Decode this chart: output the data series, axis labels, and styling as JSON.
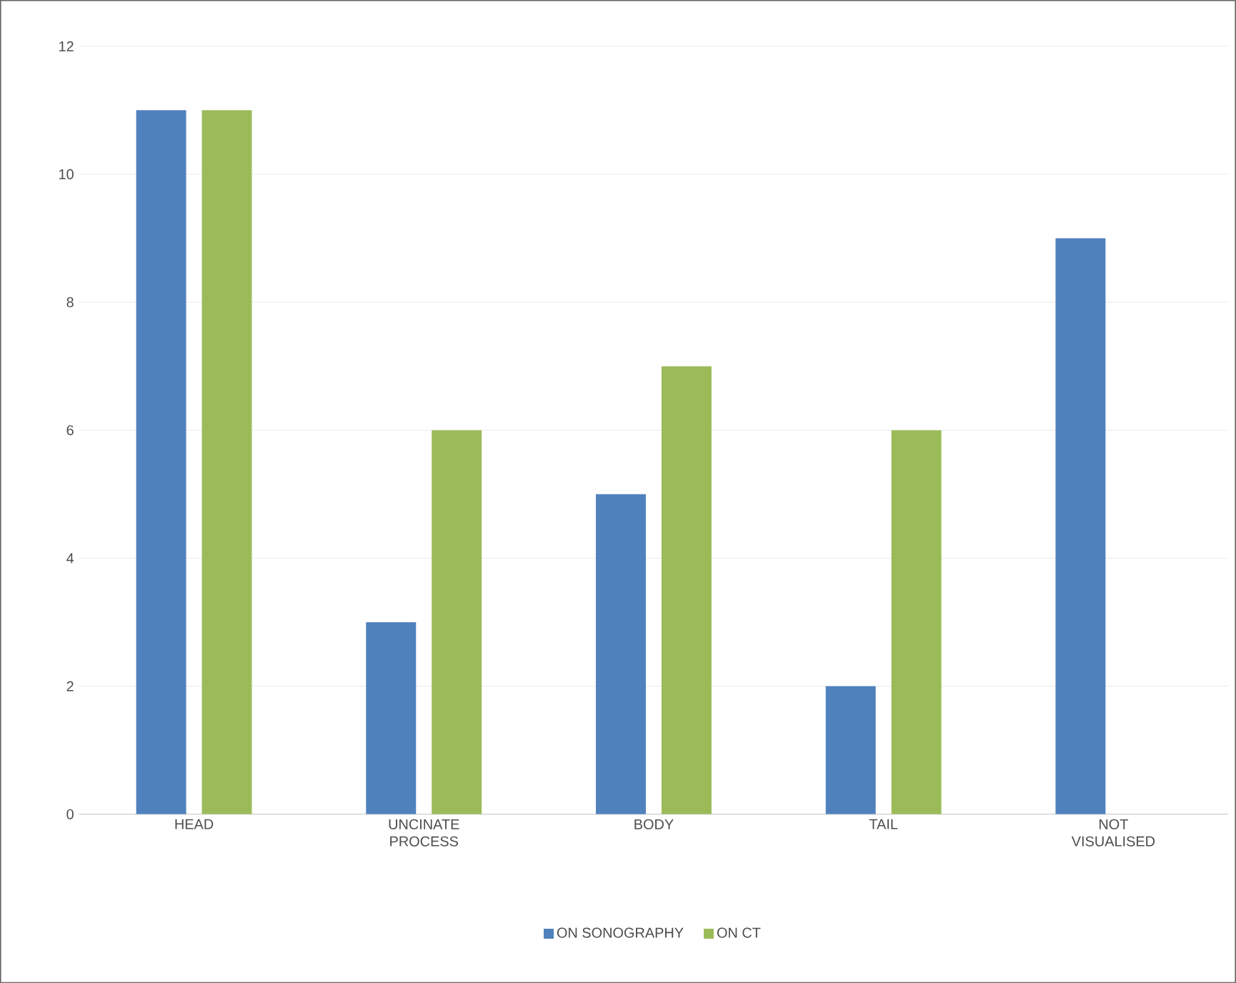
{
  "chart_data": {
    "type": "bar",
    "categories": [
      "HEAD",
      "UNCINATE PROCESS",
      "BODY",
      "TAIL",
      "NOT VISUALISED"
    ],
    "series": [
      {
        "name": "ON SONOGRAPHY",
        "color": "#4f81bd",
        "values": [
          11,
          3,
          5,
          2,
          9
        ]
      },
      {
        "name": "ON CT",
        "color": "#9bbb59",
        "values": [
          11,
          6,
          7,
          6,
          0
        ]
      }
    ],
    "ylim": [
      0,
      12
    ],
    "yticks": [
      0,
      2,
      4,
      6,
      8,
      10,
      12
    ],
    "grid": "y",
    "legend": "bottom"
  }
}
